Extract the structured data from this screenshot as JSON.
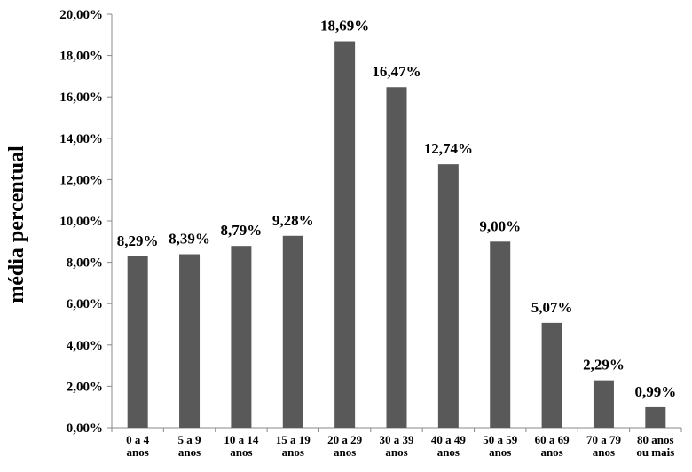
{
  "chart_data": {
    "type": "bar",
    "title": "",
    "xlabel": "",
    "ylabel": "média  percentual",
    "ylim": [
      0,
      20
    ],
    "grid": false,
    "legend": "none",
    "bar_color": "#595959",
    "y_ticks": [
      {
        "value": 0,
        "label": "0,00%"
      },
      {
        "value": 2,
        "label": "2,00%"
      },
      {
        "value": 4,
        "label": "4,00%"
      },
      {
        "value": 6,
        "label": "6,00%"
      },
      {
        "value": 8,
        "label": "8,00%"
      },
      {
        "value": 10,
        "label": "10,00%"
      },
      {
        "value": 12,
        "label": "12,00%"
      },
      {
        "value": 14,
        "label": "14,00%"
      },
      {
        "value": 16,
        "label": "16,00%"
      },
      {
        "value": 18,
        "label": "18,00%"
      },
      {
        "value": 20,
        "label": "20,00%"
      }
    ],
    "categories": [
      [
        "0 a 4",
        "anos"
      ],
      [
        "5 a 9",
        "anos"
      ],
      [
        "10 a 14",
        "anos"
      ],
      [
        "15 a 19",
        "anos"
      ],
      [
        "20 a 29",
        "anos"
      ],
      [
        "30 a 39",
        "anos"
      ],
      [
        "40 a 49",
        "anos"
      ],
      [
        "50 a 59",
        "anos"
      ],
      [
        "60 a 69",
        "anos"
      ],
      [
        "70 a 79",
        "anos"
      ],
      [
        "80 anos",
        "ou mais"
      ]
    ],
    "values": [
      8.29,
      8.39,
      8.79,
      9.28,
      18.69,
      16.47,
      12.74,
      9.0,
      5.07,
      2.29,
      0.99
    ],
    "data_labels": [
      "8,29%",
      "8,39%",
      "8,79%",
      "9,28%",
      "18,69%",
      "16,47%",
      "12,74%",
      "9,00%",
      "5,07%",
      "2,29%",
      "0,99%"
    ]
  }
}
